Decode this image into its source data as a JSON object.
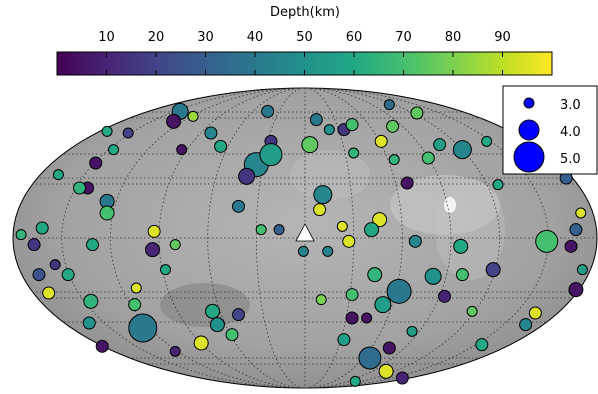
{
  "chart_data": {
    "type": "scatter",
    "x": [
      -77,
      -81,
      -69,
      -122,
      -109,
      -129,
      -118,
      -152,
      -134,
      -139,
      -122,
      -122,
      -162,
      -175,
      -167,
      -131,
      -93,
      -94,
      -80,
      -154,
      -164,
      -146,
      -158,
      -132,
      -104,
      -105,
      -133,
      -86,
      -100,
      -125,
      -80,
      -64,
      -54,
      -57,
      -41,
      -45,
      -58,
      -52,
      -76,
      -23,
      -21,
      -30,
      -21,
      -36,
      -41,
      -27,
      -16,
      7,
      15,
      24,
      29,
      30,
      3,
      11,
      9,
      23,
      14,
      27,
      46,
      41,
      52,
      54,
      47,
      69,
      76,
      83,
      97,
      112,
      63,
      68,
      96,
      97,
      116,
      29,
      43,
      10,
      58,
      48,
      38,
      29,
      79,
      86,
      103,
      142,
      136,
      109,
      66,
      52,
      40,
      24,
      50,
      60,
      31,
      149,
      164,
      167,
      170,
      161,
      171,
      167,
      119,
      -1,
      55
    ],
    "y": [
      76,
      70,
      73,
      64,
      63,
      45,
      53,
      38,
      30,
      30,
      22,
      15,
      6,
      2,
      -4,
      -4,
      4,
      -7,
      -4,
      -16,
      -22,
      -22,
      -33,
      -38,
      -30,
      -40,
      -51,
      -19,
      -54,
      -65,
      -68,
      -63,
      -52,
      -44,
      -46,
      -58,
      63,
      55,
      53,
      76,
      58,
      44,
      50,
      37,
      19,
      5,
      5,
      71,
      65,
      65,
      68,
      51,
      56,
      26,
      17,
      7,
      -8,
      -2,
      11,
      5,
      80,
      67,
      58,
      75,
      48,
      56,
      53,
      58,
      33,
      -2,
      -5,
      -22,
      -19,
      -34,
      -22,
      -37,
      -32,
      -40,
      -48,
      -48,
      -23,
      -35,
      -44,
      -45,
      -52,
      -64,
      -56,
      -66,
      -72,
      -61,
      -80,
      -84,
      -86,
      -2,
      -5,
      5,
      15,
      36,
      -19,
      -31,
      32,
      -8,
      47
    ],
    "magnitude": [
      3.6,
      3.4,
      3.0,
      3.0,
      3.0,
      3.2,
      3.0,
      3.0,
      3.2,
      3.2,
      3.4,
      3.4,
      3.2,
      3.0,
      3.2,
      3.2,
      3.2,
      3.4,
      3.0,
      3.0,
      3.2,
      3.2,
      3.2,
      3.4,
      3.0,
      3.2,
      3.2,
      3.0,
      4.8,
      3.2,
      3.0,
      3.4,
      3.4,
      3.4,
      3.2,
      3.2,
      3.2,
      3.2,
      3.0,
      3.2,
      3.2,
      4.4,
      4.2,
      3.6,
      3.2,
      3.0,
      3.0,
      3.2,
      3.0,
      3.2,
      3.2,
      3.0,
      3.6,
      3.8,
      3.2,
      3.0,
      3.0,
      3.2,
      3.4,
      3.4,
      3.0,
      3.2,
      3.2,
      3.2,
      3.2,
      3.2,
      3.8,
      3.0,
      3.2,
      3.2,
      3.4,
      3.2,
      3.4,
      3.2,
      3.4,
      3.0,
      4.4,
      3.6,
      3.0,
      3.2,
      3.6,
      3.2,
      3.0,
      3.2,
      3.2,
      3.2,
      3.0,
      3.2,
      4.2,
      3.2,
      3.4,
      3.2,
      3.0,
      4.2,
      3.2,
      3.2,
      3.0,
      3.2,
      3.0,
      3.4,
      3.0,
      3.0,
      3.0
    ],
    "depth": [
      40,
      5,
      85,
      60,
      20,
      5,
      60,
      60,
      5,
      65,
      40,
      70,
      60,
      65,
      15,
      60,
      95,
      10,
      75,
      15,
      25,
      60,
      95,
      65,
      95,
      70,
      50,
      60,
      40,
      5,
      10,
      95,
      50,
      60,
      20,
      70,
      45,
      60,
      5,
      40,
      15,
      45,
      55,
      15,
      40,
      70,
      30,
      40,
      50,
      15,
      70,
      65,
      75,
      45,
      95,
      95,
      45,
      95,
      95,
      60,
      35,
      75,
      95,
      75,
      70,
      55,
      45,
      60,
      5,
      45,
      60,
      70,
      20,
      70,
      65,
      80,
      40,
      55,
      5,
      5,
      50,
      10,
      75,
      95,
      45,
      60,
      55,
      5,
      35,
      55,
      95,
      10,
      60,
      70,
      5,
      30,
      95,
      30,
      55,
      5,
      60,
      45,
      65
    ],
    "xlim": [
      -180,
      180
    ],
    "ylim": [
      -90,
      90
    ],
    "colorbar": {
      "label": "Depth(km)",
      "lim": [
        0,
        100
      ],
      "ticks": [
        10,
        20,
        30,
        40,
        50,
        60,
        70,
        80,
        90
      ],
      "colormap": "viridis"
    },
    "size_legend": [
      {
        "value": 3,
        "label": "3.0"
      },
      {
        "value": 4,
        "label": "4.0"
      },
      {
        "value": 5,
        "label": "5.0"
      }
    ],
    "legend_color": "#0000ff",
    "legend_position": "upper right",
    "grid": true
  }
}
